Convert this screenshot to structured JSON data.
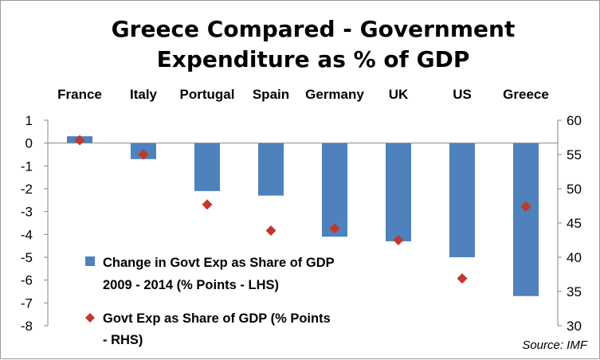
{
  "chart_data": {
    "type": "bar",
    "title_lines": [
      "Greece Compared - Government",
      "Expenditure as % of GDP"
    ],
    "categories": [
      "France",
      "Italy",
      "Portugal",
      "Spain",
      "Germany",
      "UK",
      "US",
      "Greece"
    ],
    "series": [
      {
        "name": "Change in Govt Exp as Share of GDP 2009 - 2014 (% Points - LHS)",
        "legend_lines": [
          "Change in Govt Exp as Share of GDP",
          "2009 - 2014 (% Points - LHS)"
        ],
        "type": "bar",
        "axis": "left",
        "color": "#4f81bd",
        "values": [
          0.3,
          -0.7,
          -2.1,
          -2.3,
          -4.1,
          -4.3,
          -5.0,
          -6.7
        ]
      },
      {
        "name": "Govt Exp as Share of GDP (% Points - RHS)",
        "legend_lines": [
          "Govt Exp as Share of GDP (% Points",
          "- RHS)"
        ],
        "type": "scatter",
        "marker": "diamond",
        "axis": "right",
        "color": "#c0392b",
        "values": [
          57.1,
          55.0,
          47.7,
          43.9,
          44.2,
          42.5,
          36.9,
          47.4
        ]
      }
    ],
    "y_left": {
      "ylim": [
        -8,
        1
      ],
      "ticks": [
        "1",
        "0",
        "-1",
        "-2",
        "-3",
        "-4",
        "-5",
        "-6",
        "-7",
        "-8"
      ]
    },
    "y_right": {
      "ylim": [
        30,
        60
      ],
      "ticks": [
        "60",
        "55",
        "50",
        "45",
        "40",
        "35",
        "30"
      ]
    },
    "grid": false,
    "legend_position": "bottom-left",
    "source": "Source: IMF"
  }
}
